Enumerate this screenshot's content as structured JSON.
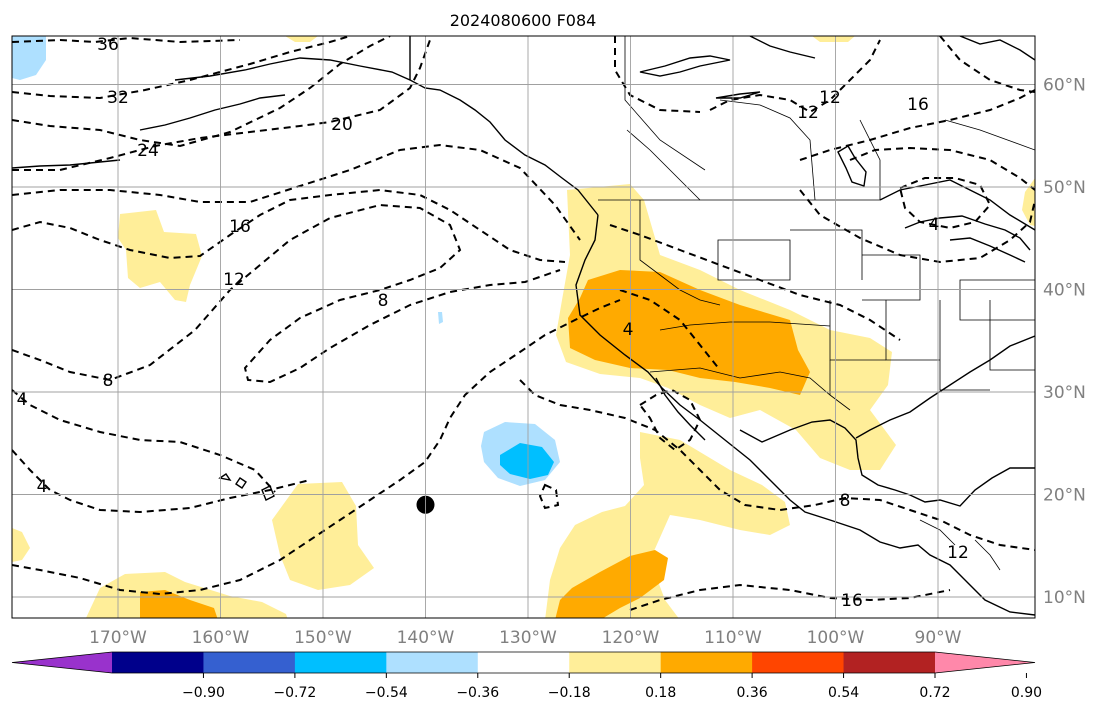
{
  "title": "2024080600 F084",
  "map": {
    "lon_range": [
      -180,
      -80
    ],
    "lat_range": [
      8,
      65
    ],
    "lon_ticks": [
      -170,
      -160,
      -150,
      -140,
      -130,
      -120,
      -110,
      -100,
      -90
    ],
    "lon_tick_labels": [
      "170°W",
      "160°W",
      "150°W",
      "140°W",
      "130°W",
      "120°W",
      "110°W",
      "100°W",
      "90°W"
    ],
    "lat_ticks": [
      10,
      20,
      30,
      40,
      50,
      60
    ],
    "lat_tick_labels": [
      "10°N",
      "20°N",
      "30°N",
      "40°N",
      "50°N",
      "60°N"
    ],
    "grid": true,
    "marker": {
      "lon": -140,
      "lat": 19,
      "color": "#000000"
    },
    "contour_labels": [
      "36",
      "32",
      "24",
      "20",
      "16",
      "12",
      "8",
      "4",
      "4",
      "8",
      "4",
      "8",
      "12",
      "16",
      "12",
      "16",
      "4",
      "12"
    ],
    "colors": {
      "light_yellow": "#ffee99",
      "orange": "#ffaa00",
      "light_blue": "#aee0ff",
      "blue": "#00bfff"
    }
  },
  "colorbar": {
    "colors": [
      "#9932cc",
      "#00008b",
      "#3560d0",
      "#00bfff",
      "#aee0ff",
      "#ffffff",
      "#ffee99",
      "#ffaa00",
      "#ff4500",
      "#b22222",
      "#ff88aa"
    ],
    "tick_labels": [
      "−0.90",
      "−0.72",
      "−0.54",
      "−0.36",
      "−0.18",
      "0.18",
      "0.36",
      "0.54",
      "0.72",
      "0.90"
    ],
    "extend": "both"
  }
}
